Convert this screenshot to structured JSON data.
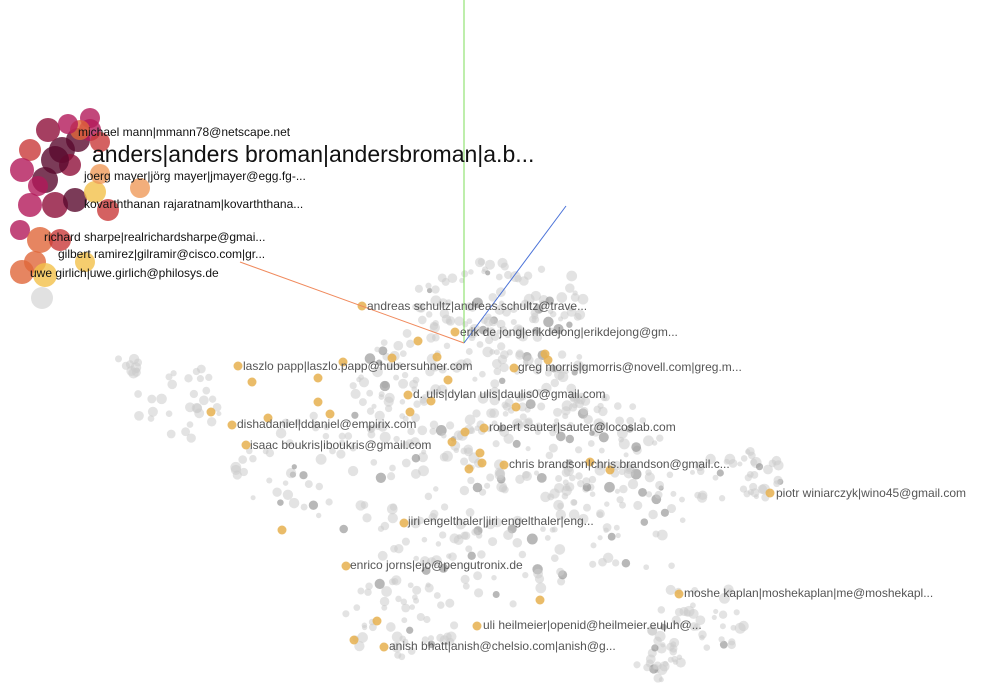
{
  "colors": {
    "x_axis": "#f08a5d",
    "y_axis": "#7cdc5a",
    "z_axis": "#4a72d8",
    "point_grey": "#cccccc",
    "point_orange": "#e6b04f",
    "cluster": [
      "#5a0a2e",
      "#8e0f3a",
      "#b3195a",
      "#c93a3a",
      "#e0673a",
      "#ef9a5a",
      "#f2c04a",
      "#d9d9d9"
    ]
  },
  "labels": {
    "michael": "michael mann|mmann78@netscape.net",
    "anders": "anders|anders broman|andersbroman|a.b...",
    "joerg": "joerg mayer|jörg mayer|jmayer@egg.fg-...",
    "kovarth": "kovarththanan rajaratnam|kovarththana...",
    "richard": "richard sharpe|realrichardsharpe@gmai...",
    "gilbert": "gilbert ramirez|gilramir@cisco.com|gr...",
    "uwe": "uwe girlich|uwe.girlich@philosys.de",
    "andreas": "andreas schultz|andreas.schultz@trave...",
    "erik": "erik de jong|erikdejong|erikdejong@gm...",
    "laszlo": "laszlo papp|laszlo.papp@hubersuhner.com",
    "greg": "greg morris|gmorris@novell.com|greg.m...",
    "dulis": "d. ulis|dylan ulis|daulis0@gmail.com",
    "dishadaniel": "dishadaniel|ddaniel@empirix.com",
    "robert": "robert sauter|sauter@locoslab.com",
    "isaac": "isaac boukris|iboukris@gmail.com",
    "chris": "chris brandson|chris.brandson@gmail.c...",
    "piotr": "piotr winiarczyk|wino45@gmail.com",
    "jiri": "jiri engelthaler|jiri engelthaler|eng...",
    "enrico": "enrico jorns|ejo@pengutronix.de",
    "moshe": "moshe kaplan|moshekaplan|me@moshekapl...",
    "uli": "uli heilmeier|openid@heilmeier.eu|uh@...",
    "anish": "anish bhatt|anish@chelsio.com|anish@g..."
  }
}
